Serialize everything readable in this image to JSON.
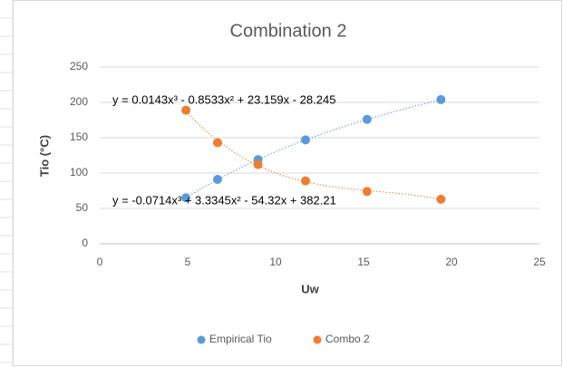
{
  "chart_data": {
    "type": "scatter",
    "title": "Combination 2",
    "x_label": "Uw",
    "y_label": "Tio (°C)",
    "series": [
      {
        "name": "Empirical Tio",
        "color": "#5b9bd5",
        "trendline": "poly3",
        "x": [
          4.9,
          6.7,
          9.0,
          11.7,
          15.2,
          19.4
        ],
        "values": [
          65,
          91,
          119,
          147,
          176,
          204
        ]
      },
      {
        "name": "Combo 2",
        "color": "#ed7d31",
        "trendline": "poly3",
        "x": [
          4.9,
          6.7,
          9.0,
          11.7,
          15.2,
          19.4
        ],
        "values": [
          189,
          143,
          112,
          89,
          74,
          63
        ]
      }
    ],
    "annotations": [
      "y = 0.0143x³ - 0.8533x² + 23.159x - 28.245",
      "y = -0.0714x³ + 3.3345x² - 54.32x + 382.21"
    ],
    "xlim": [
      0,
      25
    ],
    "xticks": [
      0,
      5,
      10,
      15,
      20,
      25
    ],
    "ylim": [
      0,
      250
    ],
    "yticks": [
      0,
      50,
      100,
      150,
      200,
      250
    ],
    "grid": true,
    "legend": "bottom"
  }
}
